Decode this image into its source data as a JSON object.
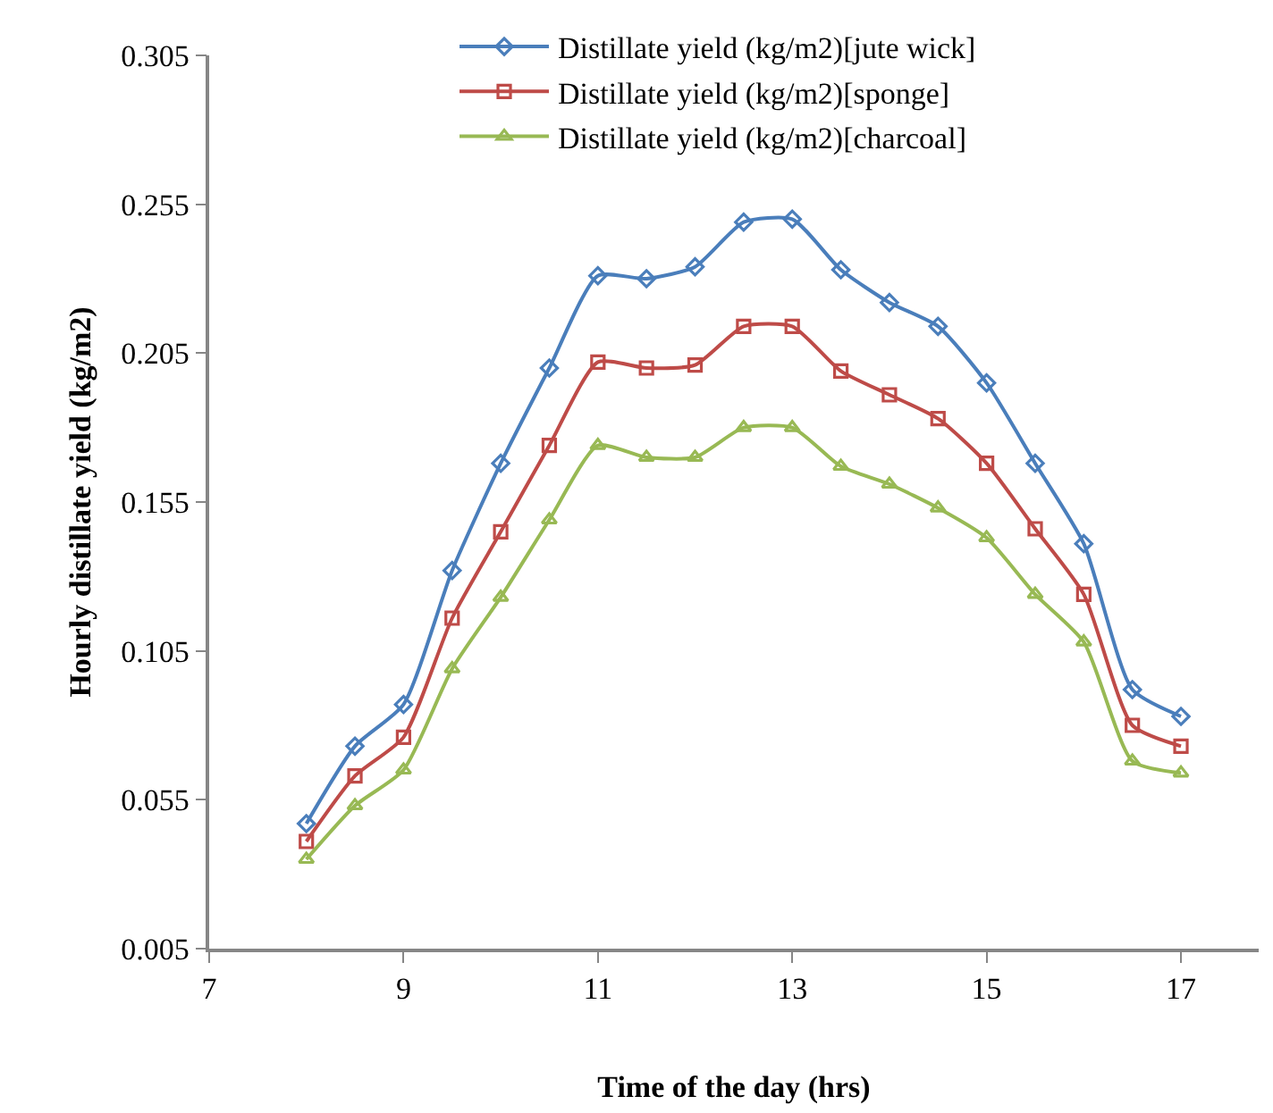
{
  "chart_data": {
    "type": "line",
    "xlabel": "Time of the day (hrs)",
    "ylabel": "Hourly distillate yield (kg/m2)",
    "x": [
      8,
      8.5,
      9,
      9.5,
      10,
      10.5,
      11,
      11.5,
      12,
      12.5,
      13,
      13.5,
      14,
      14.5,
      15,
      15.5,
      16,
      16.5,
      17
    ],
    "series": [
      {
        "name": "Distillate yield (kg/m2)[jute wick]",
        "color": "#4a7ebb",
        "marker": "diamond",
        "values": [
          0.047,
          0.073,
          0.087,
          0.132,
          0.168,
          0.2,
          0.231,
          0.23,
          0.234,
          0.249,
          0.25,
          0.233,
          0.222,
          0.214,
          0.195,
          0.168,
          0.141,
          0.092,
          0.083
        ]
      },
      {
        "name": "Distillate yield (kg/m2)[sponge]",
        "color": "#be4b48",
        "marker": "square",
        "values": [
          0.041,
          0.063,
          0.076,
          0.116,
          0.145,
          0.174,
          0.202,
          0.2,
          0.201,
          0.214,
          0.214,
          0.199,
          0.191,
          0.183,
          0.168,
          0.146,
          0.124,
          0.08,
          0.073
        ]
      },
      {
        "name": "Distillate yield (kg/m2)[charcoal]",
        "color": "#98b954",
        "marker": "triangle",
        "values": [
          0.035,
          0.053,
          0.065,
          0.099,
          0.123,
          0.149,
          0.174,
          0.17,
          0.17,
          0.18,
          0.18,
          0.167,
          0.161,
          0.153,
          0.143,
          0.124,
          0.108,
          0.068,
          0.064
        ]
      }
    ],
    "xlim": [
      7,
      17.8
    ],
    "xticks": [
      7,
      9,
      11,
      13,
      15,
      17
    ],
    "ylim": [
      0.005,
      0.305
    ],
    "yticks": [
      0.005,
      0.055,
      0.105,
      0.155,
      0.205,
      0.255,
      0.305
    ],
    "legend": "top"
  }
}
